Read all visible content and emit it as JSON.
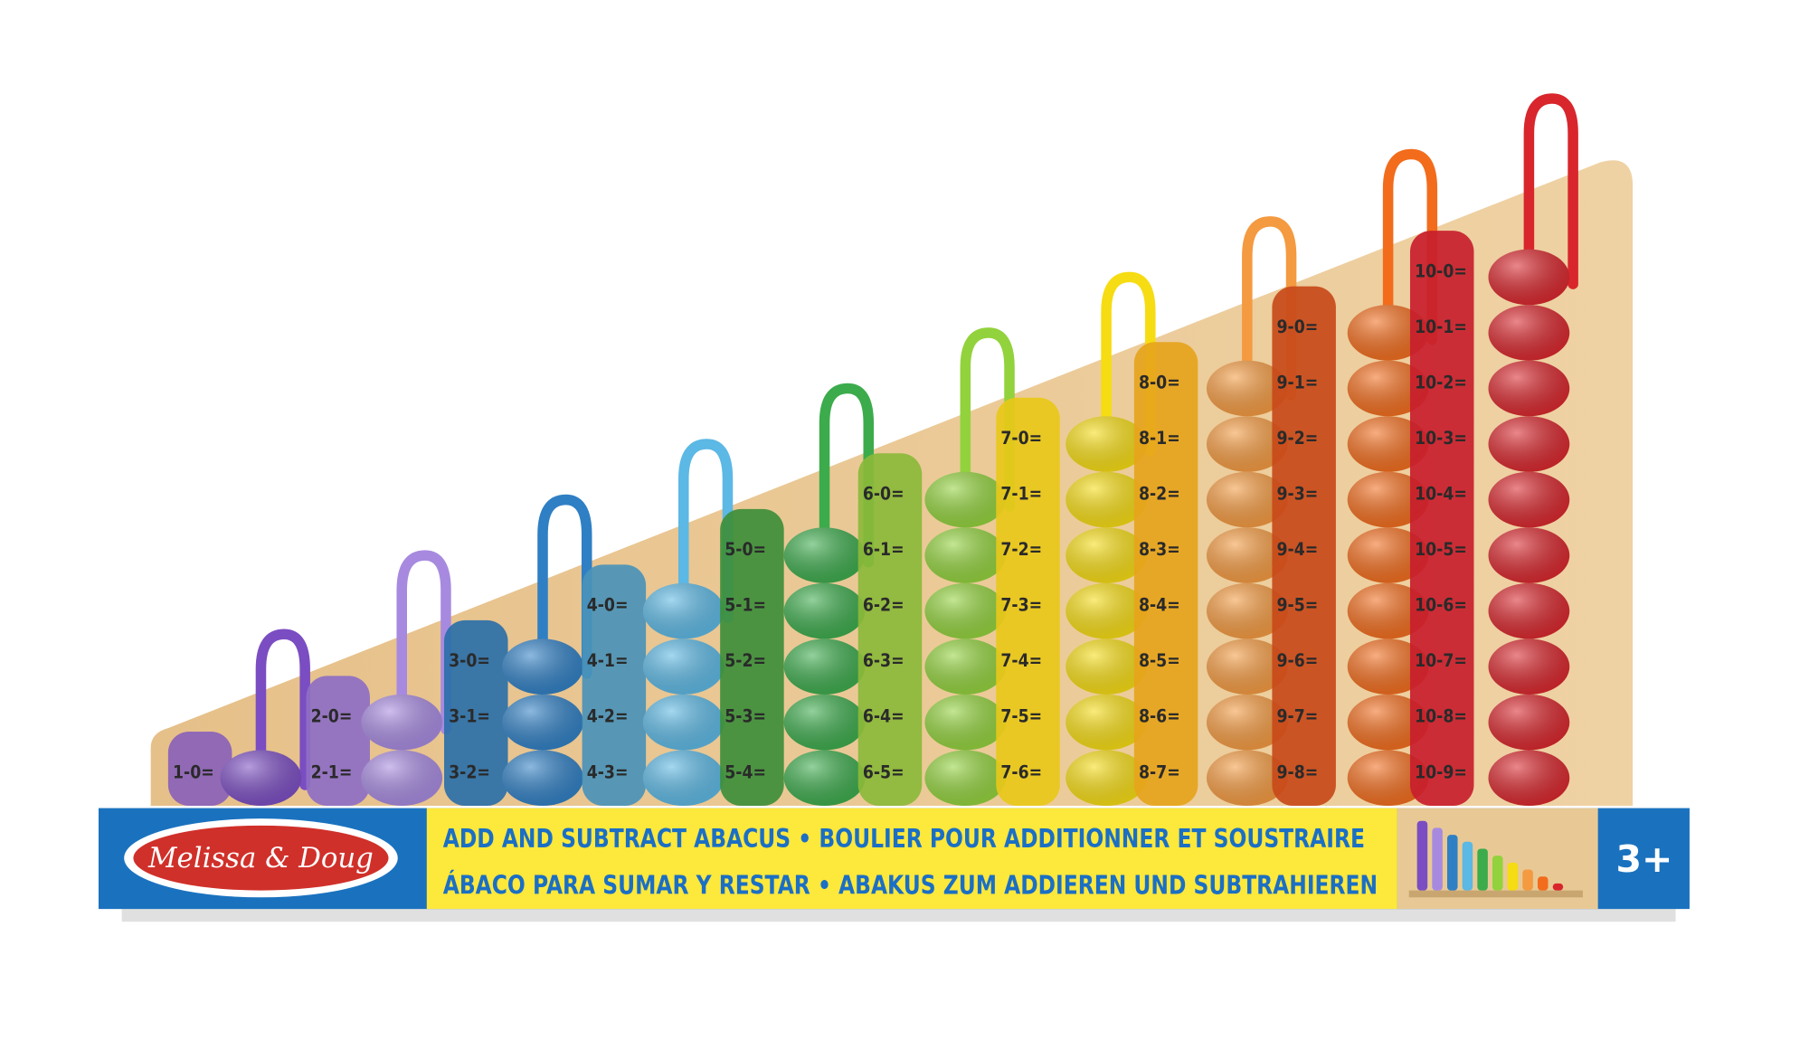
{
  "product": {
    "columns": [
      {
        "color": "#7b4dc2",
        "strip": "#8a62b8",
        "equations": [
          "1-0="
        ]
      },
      {
        "color": "#a78ae0",
        "strip": "#8e6fc4",
        "equations": [
          "2-0=",
          "2-1="
        ]
      },
      {
        "color": "#2f7fc4",
        "strip": "#2a6fa8",
        "equations": [
          "3-0=",
          "3-1=",
          "3-2="
        ]
      },
      {
        "color": "#5cb8e4",
        "strip": "#4a93b8",
        "equations": [
          "4-0=",
          "4-1=",
          "4-2=",
          "4-3="
        ]
      },
      {
        "color": "#3cab4c",
        "strip": "#3d8e3a",
        "equations": [
          "5-0=",
          "5-1=",
          "5-2=",
          "5-3=",
          "5-4="
        ]
      },
      {
        "color": "#92d23c",
        "strip": "#8bb83a",
        "equations": [
          "6-0=",
          "6-1=",
          "6-2=",
          "6-3=",
          "6-4=",
          "6-5="
        ]
      },
      {
        "color": "#f6dc12",
        "strip": "#e8c81a",
        "equations": [
          "7-0=",
          "7-1=",
          "7-2=",
          "7-3=",
          "7-4=",
          "7-5=",
          "7-6="
        ]
      },
      {
        "color": "#f49a40",
        "strip": "#e6a41c",
        "equations": [
          "8-0=",
          "8-1=",
          "8-2=",
          "8-3=",
          "8-4=",
          "8-5=",
          "8-6=",
          "8-7="
        ]
      },
      {
        "color": "#f26c1c",
        "strip": "#c84a1a",
        "equations": [
          "9-0=",
          "9-1=",
          "9-2=",
          "9-3=",
          "9-4=",
          "9-5=",
          "9-6=",
          "9-7=",
          "9-8="
        ]
      },
      {
        "color": "#d8262c",
        "strip": "#c81e2c",
        "equations": [
          "10-0=",
          "10-1=",
          "10-2=",
          "10-3=",
          "10-4=",
          "10-5=",
          "10-6=",
          "10-7=",
          "10-8=",
          "10-9="
        ]
      }
    ],
    "board_color": "#e9c58e"
  },
  "banner": {
    "logo_text": "Melissa & Doug",
    "line1": "ADD AND SUBTRACT ABACUS • BOULIER POUR ADDITIONNER ET SOUSTRAIRE",
    "line2": "ÁBACO PARA SUMAR Y RESTAR • ABAKUS ZUM ADDIEREN UND SUBTRAHIEREN",
    "age": "3+",
    "colors": {
      "blue": "#1a72bf",
      "yellow": "#fde83c",
      "logo_red": "#d0302a"
    }
  }
}
